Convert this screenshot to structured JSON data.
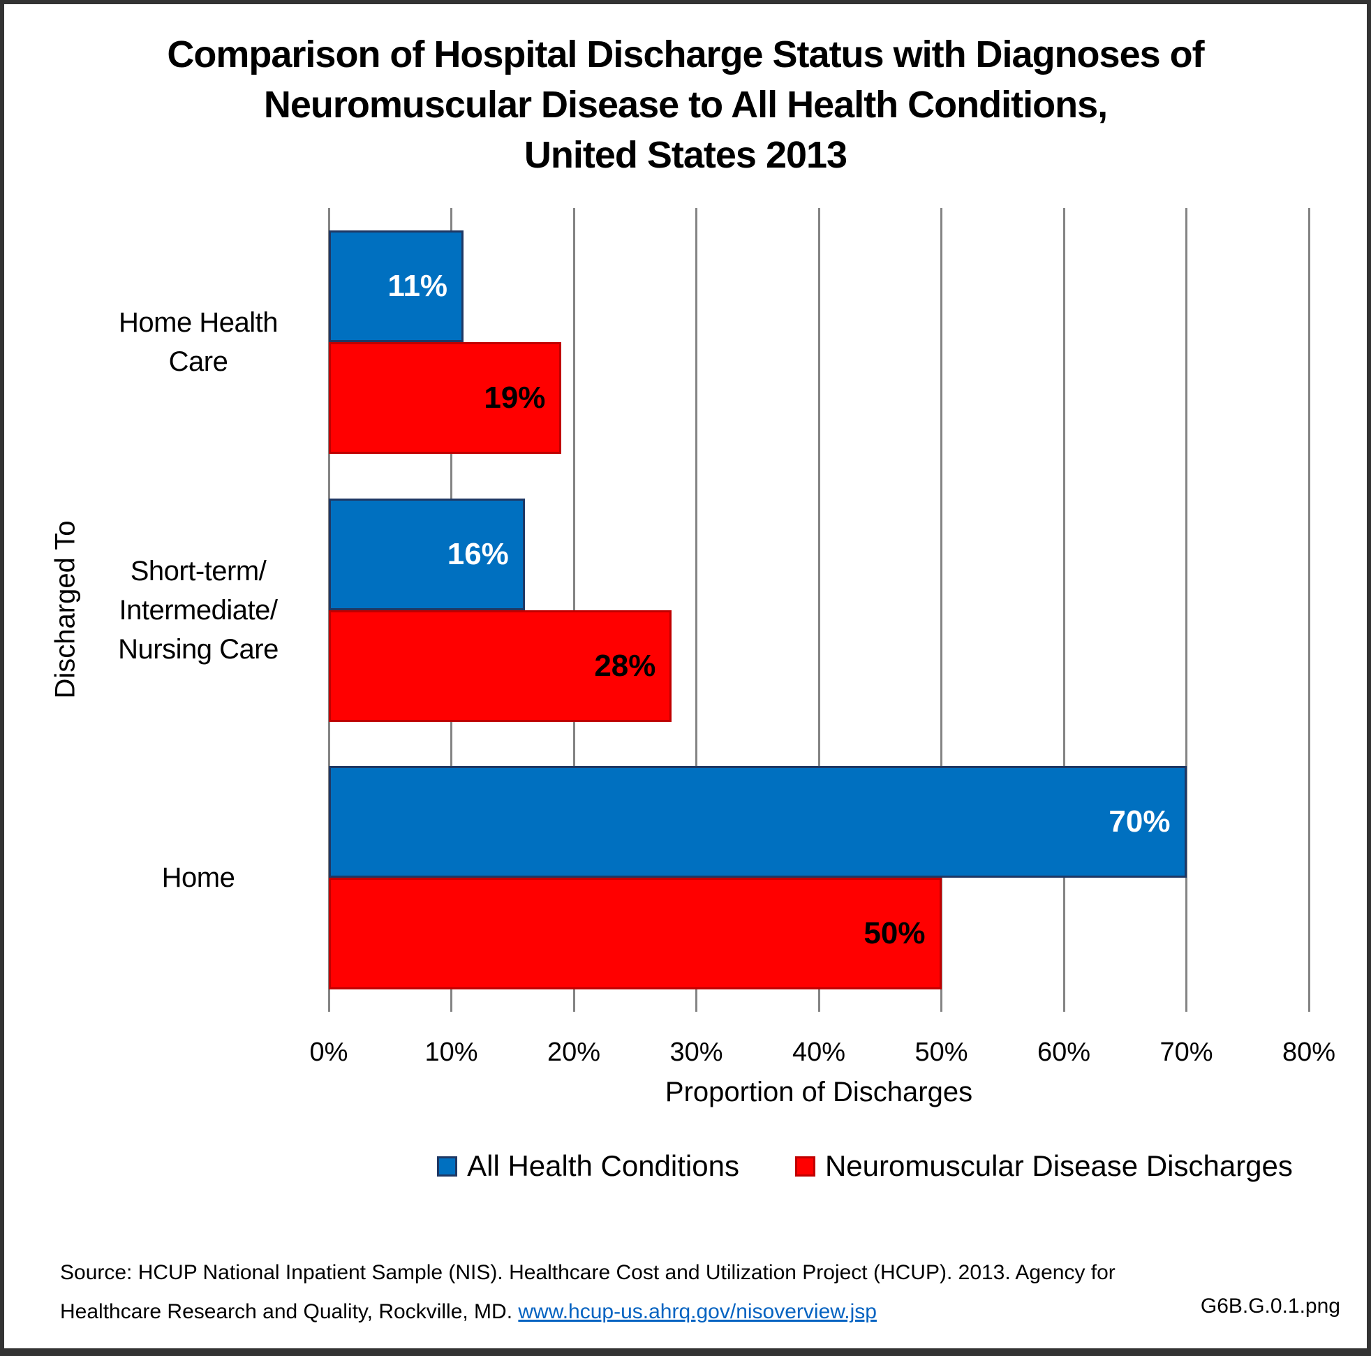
{
  "title_lines": [
    "Comparison of Hospital Discharge Status with Diagnoses of",
    "Neuromuscular Disease to All Health Conditions,",
    "United States 2013"
  ],
  "colors": {
    "frame_border": "#333333",
    "gridline": "#848484",
    "link_blue": "#0563C1",
    "series_blue": "#0070C0",
    "series_blue_border": "#1F3864",
    "series_red": "#FF0000",
    "series_red_border": "#C00000"
  },
  "chart_data": {
    "type": "bar",
    "orientation": "horizontal",
    "title": "Comparison of Hospital Discharge Status with Diagnoses of Neuromuscular Disease to All Health Conditions, United States 2013",
    "categories": [
      "Home Health Care",
      "Short-term/ Intermediate/ Nursing Care",
      "Home"
    ],
    "categories_lines": [
      [
        "Home Health",
        "Care"
      ],
      [
        "Short-term/",
        "Intermediate/",
        "Nursing Care"
      ],
      [
        "Home"
      ]
    ],
    "series": [
      {
        "name": "All Health Conditions",
        "color": "#0070C0",
        "border_color": "#1F3864",
        "label_color": "#FFFFFF",
        "values": [
          11,
          16,
          70
        ],
        "data_labels": [
          "11%",
          "16%",
          "70%"
        ]
      },
      {
        "name": "Neuromuscular Disease Discharges",
        "color": "#FF0000",
        "border_color": "#C00000",
        "label_color": "#000000",
        "values": [
          19,
          28,
          50
        ],
        "data_labels": [
          "19%",
          "28%",
          "50%"
        ]
      }
    ],
    "xlabel": "Proportion of Discharges",
    "ylabel": "Discharged To",
    "xlim": [
      0,
      80
    ],
    "xticks": [
      "0%",
      "10%",
      "20%",
      "30%",
      "40%",
      "50%",
      "60%",
      "70%",
      "80%"
    ],
    "grid": "vertical",
    "legend_position": "bottom"
  },
  "source": {
    "line1": "Source: HCUP National Inpatient Sample (NIS). Healthcare Cost and Utilization Project (HCUP). 2013. Agency for",
    "line2_prefix": "Healthcare Research and Quality, Rockville, MD. ",
    "link": "www.hcup-us.ahrq.gov/nisoverview.jsp",
    "file_label": "G6B.G.0.1.png"
  }
}
